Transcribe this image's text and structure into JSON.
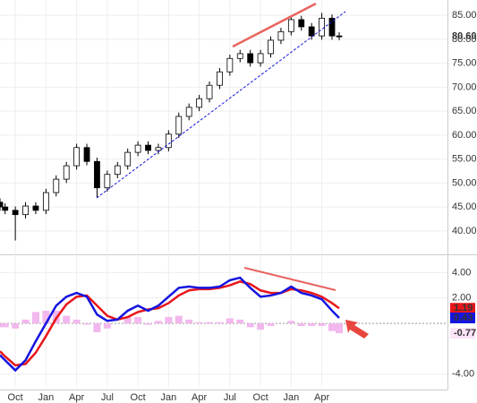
{
  "chart_data": [
    {
      "type": "candlestick",
      "xlim": [
        -1.5,
        42.3
      ],
      "ylim": [
        35.3,
        88.2
      ],
      "x": [
        -1.5,
        -1,
        0,
        1,
        2,
        3,
        4,
        5,
        6,
        7,
        8,
        9,
        10,
        11,
        12,
        13,
        14,
        15,
        16,
        17,
        18,
        19,
        20,
        21,
        22,
        23,
        24,
        25,
        26,
        27,
        28,
        29,
        30,
        31,
        31.7
      ],
      "open": [
        46,
        45,
        44.3,
        43.4,
        45.2,
        44.3,
        48,
        50.8,
        53.6,
        57.4,
        54.5,
        49,
        51.8,
        53.6,
        56.4,
        57.9,
        56.8,
        57.4,
        60.2,
        63.9,
        65.8,
        67.6,
        70.4,
        73.2,
        76,
        77,
        75.1,
        77,
        79.8,
        81.6,
        84.1,
        82.6,
        80.7,
        84.4,
        80.7
      ],
      "high": [
        46.8,
        45.8,
        45.1,
        46,
        46,
        48.8,
        51.6,
        54.4,
        58.2,
        58.2,
        55.3,
        52.6,
        54.4,
        57.2,
        58.7,
        58.7,
        58.2,
        61,
        64.7,
        66.6,
        68.4,
        71.2,
        74,
        76.8,
        77.8,
        77.8,
        77.8,
        80.6,
        82.4,
        84.9,
        84.9,
        83.4,
        85.5,
        85.2,
        81.5
      ],
      "low": [
        44.2,
        43.5,
        38,
        42.6,
        43.5,
        43.5,
        47.2,
        50,
        52.8,
        53.7,
        47,
        48.2,
        51,
        52.8,
        55.6,
        56,
        56,
        56.6,
        59.4,
        63.1,
        65,
        66.8,
        69.6,
        72.4,
        75.2,
        74.3,
        74.3,
        76.2,
        79,
        80.8,
        81.8,
        79.9,
        79.9,
        79.9,
        79.8
      ],
      "close": [
        45,
        44.3,
        43.4,
        45.2,
        44.3,
        48,
        50.8,
        53.6,
        57.4,
        54.5,
        49,
        51.8,
        53.6,
        56.4,
        57.9,
        56.8,
        57.4,
        60.2,
        63.9,
        65.8,
        67.6,
        70.4,
        73.2,
        76,
        77,
        75.1,
        77,
        79.8,
        81.6,
        84.1,
        82.6,
        80.7,
        84.4,
        80.7,
        80.6
      ],
      "up_color": "#ffffff",
      "down_color": "#000000",
      "yticks": [
        {
          "value": 40,
          "label": "40.00"
        },
        {
          "value": 45,
          "label": "45.00"
        },
        {
          "value": 50,
          "label": "50.00"
        },
        {
          "value": 55,
          "label": "55.00"
        },
        {
          "value": 60,
          "label": "60.00"
        },
        {
          "value": 65,
          "label": "65.00"
        },
        {
          "value": 70,
          "label": "70.00"
        },
        {
          "value": 75,
          "label": "75.00"
        },
        {
          "value": 80,
          "label": "80.00"
        },
        {
          "value": 85,
          "label": "85.00"
        }
      ],
      "last_value": {
        "value": 80.6,
        "label": "80.60"
      },
      "grid": true
    },
    {
      "type": "line",
      "xlim": [
        -1.5,
        42.3
      ],
      "ylim": [
        -5.0,
        5.3
      ],
      "ref_line": 0,
      "x": [
        -1.5,
        -1,
        0,
        1,
        2,
        3,
        4,
        5,
        6,
        7,
        8,
        9,
        10,
        11,
        12,
        13,
        14,
        15,
        16,
        17,
        18,
        19,
        20,
        21,
        22,
        23,
        24,
        25,
        26,
        27,
        28,
        29,
        30,
        31,
        31.7
      ],
      "series": [
        {
          "kind": "bar",
          "color": "#f2b8ee",
          "last_value": -0.77,
          "values": [
            -0.3,
            -0.3,
            -0.4,
            0.3,
            0.9,
            1.0,
            1.0,
            0.6,
            0.3,
            -0.1,
            -0.7,
            -0.4,
            0,
            0.5,
            0.5,
            -0.1,
            0.2,
            0.5,
            0.6,
            0.3,
            0.1,
            0.1,
            0.1,
            0.4,
            0.3,
            -0.3,
            -0.5,
            -0.2,
            0,
            0.2,
            -0.2,
            -0.2,
            -0.2,
            -0.6,
            -0.77
          ]
        },
        {
          "kind": "line",
          "color": "#e8161b",
          "last_value": 1.19,
          "values": [
            -2.2,
            -2.6,
            -3.3,
            -3.2,
            -2.3,
            -1.0,
            0.4,
            1.5,
            2.1,
            2.2,
            1.4,
            0.6,
            0.3,
            0.5,
            0.9,
            1.1,
            1.2,
            1.6,
            2.2,
            2.6,
            2.7,
            2.7,
            2.8,
            3.0,
            3.3,
            3.1,
            2.6,
            2.4,
            2.4,
            2.7,
            2.6,
            2.4,
            2.1,
            1.6,
            1.19
          ]
        },
        {
          "kind": "line",
          "color": "#1414e0",
          "last_value": 0.43,
          "values": [
            -2.5,
            -2.9,
            -3.7,
            -2.9,
            -1.4,
            0,
            1.4,
            2.1,
            2.4,
            2.1,
            0.7,
            0.2,
            0.3,
            1.0,
            1.4,
            1.0,
            1.4,
            2.1,
            2.8,
            2.9,
            2.8,
            2.8,
            2.9,
            3.4,
            3.6,
            2.8,
            2.1,
            2.2,
            2.4,
            2.9,
            2.4,
            2.2,
            1.9,
            1.0,
            0.43
          ]
        }
      ],
      "yticks": [
        {
          "value": 4,
          "label": "4.00"
        },
        {
          "value": 2,
          "label": "2.00"
        },
        {
          "value": -4,
          "label": "-4.00"
        }
      ],
      "xticks": [
        {
          "value": 0,
          "label": "Oct"
        },
        {
          "value": 3,
          "label": "Jan"
        },
        {
          "value": 6,
          "label": "Apr"
        },
        {
          "value": 9,
          "label": "Jul"
        },
        {
          "value": 12,
          "label": "Oct"
        },
        {
          "value": 15,
          "label": "Jan"
        },
        {
          "value": 18,
          "label": "Apr"
        },
        {
          "value": 21,
          "label": "Jul"
        },
        {
          "value": 24,
          "label": "Oct"
        },
        {
          "value": 27,
          "label": "Jan"
        },
        {
          "value": 30,
          "label": "Apr"
        }
      ],
      "grid": true
    }
  ]
}
